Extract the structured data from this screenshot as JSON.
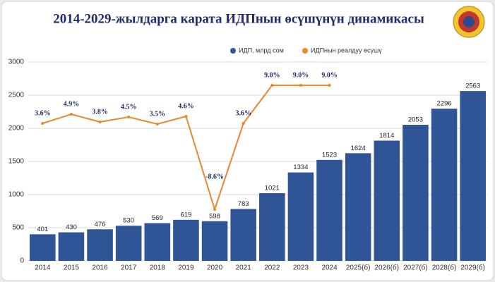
{
  "chart_data": {
    "type": "bar_line",
    "title": "2014-2029-жылдарга карата ИДПнын өсүшүнүн динамикасы",
    "categories": [
      "2014",
      "2015",
      "2016",
      "2017",
      "2018",
      "2019",
      "2020",
      "2021",
      "2022",
      "2023",
      "2024",
      "2025(б)",
      "2026(б)",
      "2027(б)",
      "2028(б)",
      "2029(б)"
    ],
    "series": [
      {
        "name": "ИДП, млрд сом",
        "color": "#2f5597",
        "values": [
          401,
          430,
          476,
          530,
          569,
          619,
          598,
          783,
          1021,
          1334,
          1523,
          1624,
          1814,
          2053,
          2296,
          2563
        ]
      },
      {
        "name": "ИДПнын реалдуу өсүшү",
        "color": "#e8872c",
        "axis": "y2",
        "values": [
          3.6,
          4.9,
          3.8,
          4.5,
          3.5,
          4.6,
          -8.6,
          3.6,
          9.0,
          9.0,
          9.0,
          null,
          null,
          null,
          null,
          null
        ],
        "value_labels": [
          "3.6%",
          "4.9%",
          "3.8%",
          "4.5%",
          "3.5%",
          "4.6%",
          "-8.6%",
          "3.6%",
          "9.0%",
          "9.0%",
          "9.0%",
          null,
          null,
          null,
          null,
          null
        ]
      }
    ],
    "ylim": [
      0,
      3000
    ],
    "yticks": [
      0,
      500,
      1000,
      1500,
      2000,
      2500,
      3000
    ],
    "y2lim": [
      -15.9,
      12.3
    ],
    "grid": true,
    "legend": "top"
  }
}
